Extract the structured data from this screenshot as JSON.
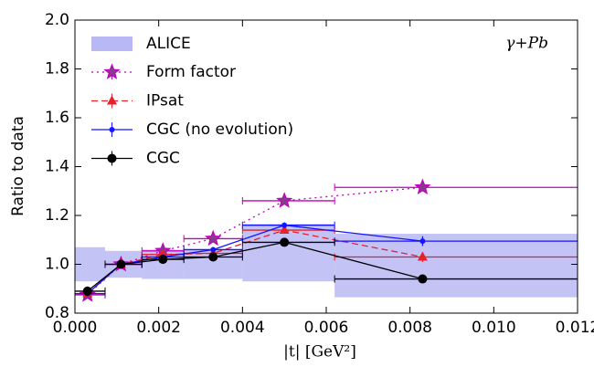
{
  "chart_data": {
    "type": "errorbar",
    "xlabel": "|t| [GeV²]",
    "ylabel": "Ratio to data",
    "annotation": "γ+Pb",
    "xlim": [
      0,
      0.012
    ],
    "xticks": [
      {
        "value": 0,
        "label": "0.000"
      },
      {
        "value": 0.002,
        "label": "0.002"
      },
      {
        "value": 0.004,
        "label": "0.004"
      },
      {
        "value": 0.006,
        "label": "0.006"
      },
      {
        "value": 0.008,
        "label": "0.008"
      },
      {
        "value": 0.01,
        "label": "0.010"
      },
      {
        "value": 0.012,
        "label": "0.012"
      }
    ],
    "ylim": [
      0.8,
      2.0
    ],
    "yticks": [
      0.8,
      {
        "value": 1,
        "label": "1.0"
      },
      1.2,
      1.4,
      1.6,
      1.8,
      {
        "value": 2,
        "label": "2.0"
      }
    ],
    "legend": "upper left",
    "bins": [
      0,
      0.00072,
      0.0016,
      0.0026,
      0.004,
      0.0062,
      0.012
    ],
    "band": {
      "name": "ALICE",
      "color": "#b8b8f4",
      "low": [
        0.93,
        0.945,
        0.94,
        0.94,
        0.93,
        0.865
      ],
      "high": [
        1.07,
        1.055,
        1.06,
        1.06,
        1.165,
        1.125
      ]
    },
    "series": [
      {
        "name": "Form factor",
        "color": "#bf00bf",
        "marker": "star",
        "line": "dotted",
        "x": [
          0.0003,
          0.0011,
          0.0021,
          0.0033,
          0.005,
          0.0083
        ],
        "values": [
          0.875,
          1.0,
          1.055,
          1.105,
          1.26,
          1.315
        ],
        "yerr": [
          0.005,
          0.005,
          0.005,
          0.005,
          0.005,
          0.005
        ]
      },
      {
        "name": "IPsat",
        "color": "#e8202a",
        "marker": "triangle",
        "line": "dashed",
        "x": [
          0.0003,
          0.0011,
          0.0021,
          0.0033,
          0.005,
          0.0083
        ],
        "values": [
          0.88,
          1.0,
          1.04,
          1.045,
          1.14,
          1.03
        ],
        "yerr": [
          0.01,
          0.01,
          0.01,
          0.01,
          0.015,
          0.02
        ]
      },
      {
        "name": "CGC (no evolution)",
        "color": "#1515ff",
        "marker": "dot",
        "line": "solid",
        "x": [
          0.0003,
          0.0011,
          0.0021,
          0.0033,
          0.005,
          0.0083
        ],
        "values": [
          0.88,
          1.0,
          1.03,
          1.06,
          1.16,
          1.095
        ],
        "yerr": [
          0.01,
          0.01,
          0.01,
          0.01,
          0.012,
          0.02
        ]
      },
      {
        "name": "CGC",
        "color": "#000000",
        "marker": "circle",
        "line": "solid",
        "x": [
          0.0003,
          0.0011,
          0.0021,
          0.0033,
          0.005,
          0.0083
        ],
        "values": [
          0.89,
          1.0,
          1.02,
          1.03,
          1.09,
          0.94
        ],
        "yerr": [
          0.012,
          0.012,
          0.012,
          0.012,
          0.015,
          0.015
        ]
      }
    ]
  }
}
